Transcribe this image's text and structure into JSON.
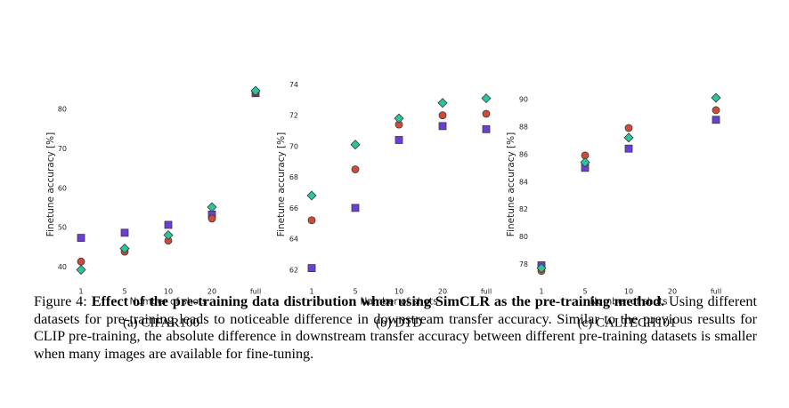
{
  "chart_data": [
    {
      "type": "scatter",
      "subcaption": "(a) CIFAR100",
      "xlabel": "Number of shots",
      "ylabel": "Finetune accuracy [%]",
      "categories": [
        "1",
        "5",
        "10",
        "20",
        "full"
      ],
      "ylim": [
        36.5,
        87
      ],
      "yticks": [
        40,
        50,
        60,
        70,
        80
      ],
      "grid": false,
      "series": [
        {
          "marker": "square",
          "color": "#6a3fd6",
          "values": [
            47.3,
            48.6,
            50.6,
            53.2,
            84.0
          ]
        },
        {
          "marker": "circle",
          "color": "#d04a3a",
          "values": [
            41.3,
            43.8,
            46.6,
            52.2,
            84.2
          ]
        },
        {
          "marker": "diamond",
          "color": "#2bc49c",
          "values": [
            39.2,
            44.6,
            48.0,
            55.1,
            84.6
          ]
        }
      ]
    },
    {
      "type": "scatter",
      "subcaption": "(b) DTD",
      "xlabel": "Number of shots",
      "ylabel": "Finetune accuracy [%]",
      "categories": [
        "1",
        "5",
        "10",
        "20",
        "full"
      ],
      "ylim": [
        61.3,
        74.2
      ],
      "yticks": [
        62,
        64,
        66,
        68,
        70,
        72,
        74
      ],
      "grid": false,
      "series": [
        {
          "marker": "square",
          "color": "#6a3fd6",
          "values": [
            62.1,
            66.0,
            70.4,
            71.3,
            71.1
          ]
        },
        {
          "marker": "circle",
          "color": "#d04a3a",
          "values": [
            65.2,
            68.5,
            71.4,
            72.0,
            72.1
          ]
        },
        {
          "marker": "diamond",
          "color": "#2bc49c",
          "values": [
            66.8,
            70.1,
            71.8,
            72.8,
            73.1
          ]
        }
      ]
    },
    {
      "type": "scatter",
      "subcaption": "(c) CALTECH101",
      "xlabel": "Number of shots",
      "ylabel": "Finetune accuracy [%]",
      "categories": [
        "1",
        "5",
        "10",
        "20",
        "full"
      ],
      "ylim": [
        76.8,
        91.3
      ],
      "yticks": [
        78,
        80,
        82,
        84,
        86,
        88,
        90
      ],
      "grid": false,
      "series": [
        {
          "marker": "square",
          "color": "#6a3fd6",
          "values": [
            77.9,
            85.0,
            86.4,
            null,
            88.5
          ]
        },
        {
          "marker": "circle",
          "color": "#d04a3a",
          "values": [
            77.5,
            85.9,
            87.9,
            null,
            89.2
          ]
        },
        {
          "marker": "diamond",
          "color": "#2bc49c",
          "values": [
            77.7,
            85.4,
            87.2,
            null,
            90.1
          ]
        }
      ]
    }
  ],
  "caption": {
    "label": "Figure 4:",
    "bold": "Effect of the pre-training data distribution when using SimCLR as the pre-training method.",
    "text": "Using different datasets for pre-training leads to noticeable difference in downstream transfer accuracy. Similar to the previous results for CLIP pre-training, the absolute difference in downstream transfer accuracy between different pre-training datasets is smaller when many images are available for fine-tuning."
  }
}
